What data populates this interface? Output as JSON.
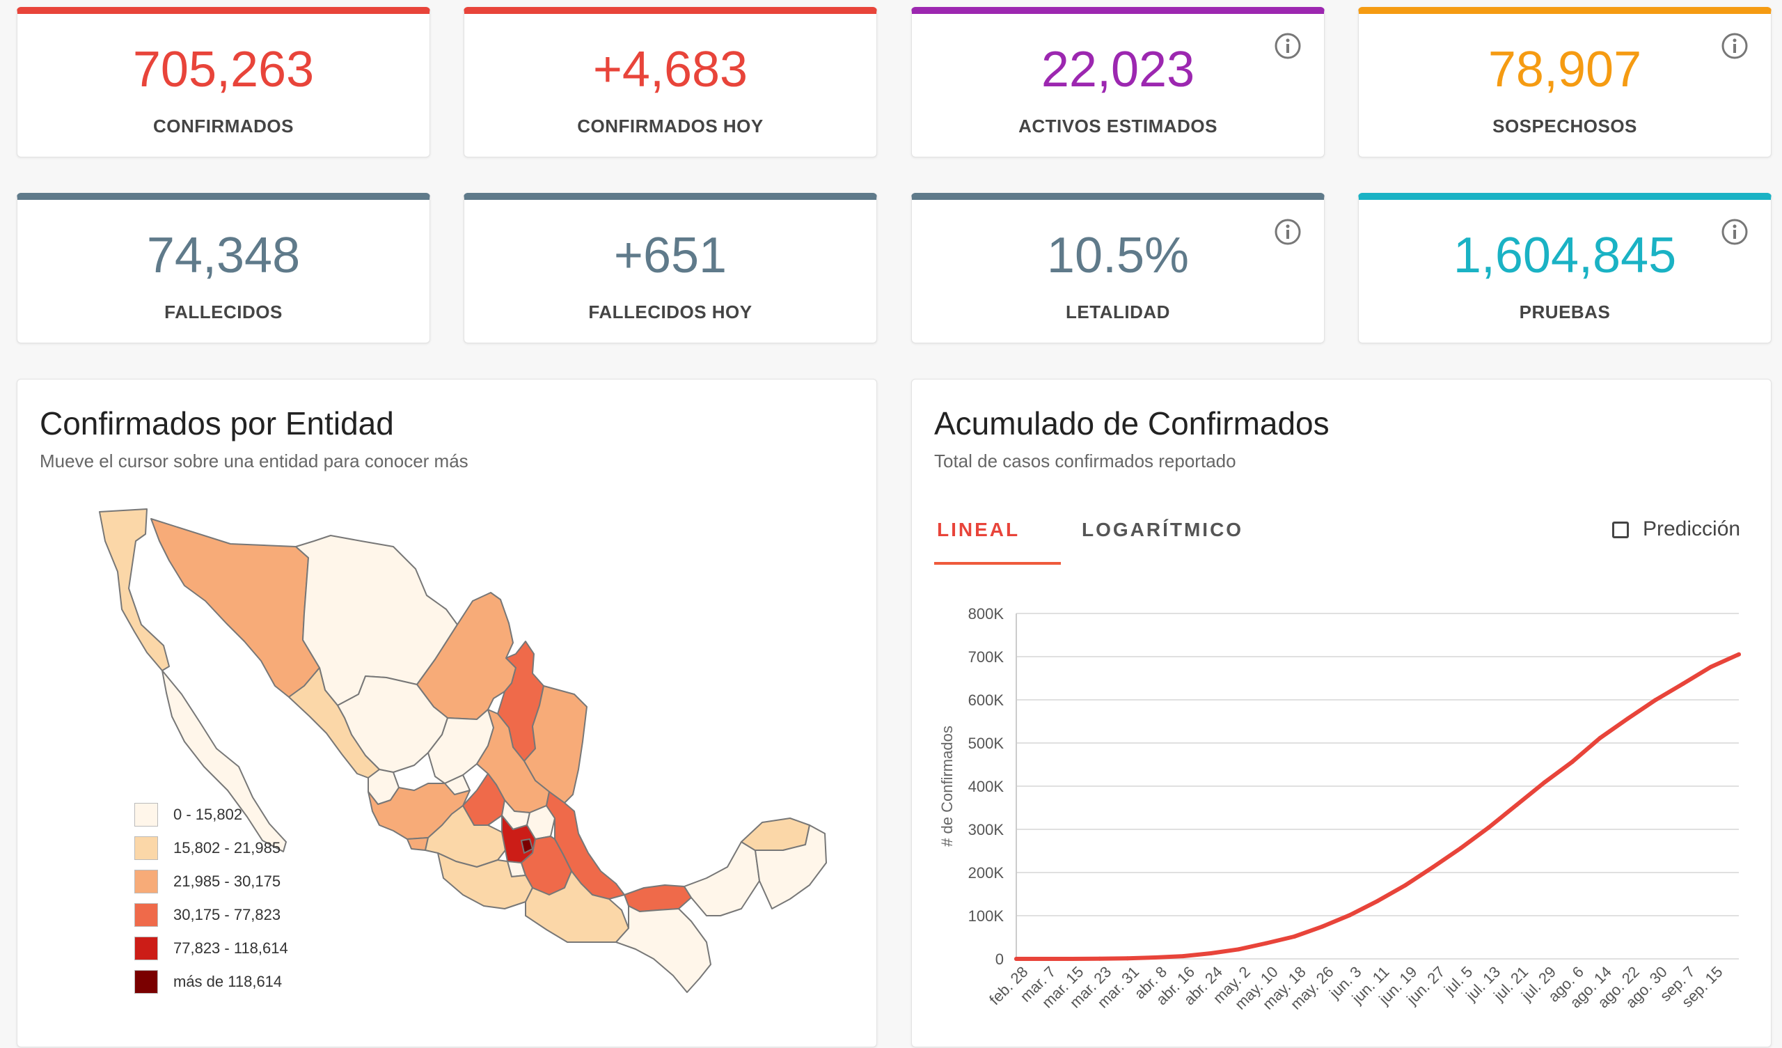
{
  "stats": [
    {
      "value": "705,263",
      "label": "CONFIRMADOS",
      "color": "#e8443a",
      "bar": "#e8443a",
      "info": false
    },
    {
      "value": "+4,683",
      "label": "CONFIRMADOS HOY",
      "color": "#e8443a",
      "bar": "#e8443a",
      "info": false
    },
    {
      "value": "22,023",
      "label": "ACTIVOS ESTIMADOS",
      "color": "#9c27b0",
      "bar": "#9c27b0",
      "info": true
    },
    {
      "value": "78,907",
      "label": "SOSPECHOSOS",
      "color": "#f59b12",
      "bar": "#f59b12",
      "info": true
    },
    {
      "value": "74,348",
      "label": "FALLECIDOS",
      "color": "#5f7a8a",
      "bar": "#5f7a8a",
      "info": false
    },
    {
      "value": "+651",
      "label": "FALLECIDOS HOY",
      "color": "#5f7a8a",
      "bar": "#5f7a8a",
      "info": false
    },
    {
      "value": "10.5%",
      "label": "LETALIDAD",
      "color": "#5f7a8a",
      "bar": "#5f7a8a",
      "info": true
    },
    {
      "value": "1,604,845",
      "label": "PRUEBAS",
      "color": "#1ab2c4",
      "bar": "#1ab2c4",
      "info": true
    }
  ],
  "map_panel": {
    "title": "Confirmados por Entidad",
    "subtitle": "Mueve el cursor sobre una entidad para conocer más",
    "legend": [
      {
        "label": "0 - 15,802",
        "color": "#fff6ea"
      },
      {
        "label": "15,802 - 21,985",
        "color": "#fbd7a8"
      },
      {
        "label": "21,985 - 30,175",
        "color": "#f7ab78"
      },
      {
        "label": "30,175 - 77,823",
        "color": "#ef6a4a"
      },
      {
        "label": "77,823 - 118,614",
        "color": "#cc1d17"
      },
      {
        "label": "más de 118,614",
        "color": "#7a0000"
      }
    ]
  },
  "chart_panel": {
    "title": "Acumulado de Confirmados",
    "subtitle": "Total de casos confirmados reportado",
    "tabs": [
      "LINEAL",
      "LOGARÍTMICO"
    ],
    "active_tab": "LINEAL",
    "checkbox_label": "Predicción"
  },
  "chart_data": {
    "type": "line",
    "ylabel": "# de Confirmados",
    "xlabel": "",
    "ylim": [
      0,
      800000
    ],
    "y_ticks": [
      "0",
      "100K",
      "200K",
      "300K",
      "400K",
      "500K",
      "600K",
      "700K",
      "800K"
    ],
    "x_ticks": [
      "feb. 28",
      "mar. 7",
      "mar. 15",
      "mar. 23",
      "mar. 31",
      "abr. 8",
      "abr. 16",
      "abr. 24",
      "may. 2",
      "may. 10",
      "may. 18",
      "may. 26",
      "jun. 3",
      "jun. 11",
      "jun. 19",
      "jun. 27",
      "jul. 5",
      "jul. 13",
      "jul. 21",
      "jul. 29",
      "ago. 6",
      "ago. 14",
      "ago. 22",
      "ago. 30",
      "sep. 7",
      "sep. 15"
    ],
    "grid": true,
    "series": [
      {
        "color": "#e8443a",
        "values": [
          0,
          7,
          41,
          316,
          1215,
          3181,
          6297,
          12872,
          22088,
          36327,
          51633,
          74560,
          101238,
          133974,
          170485,
          212802,
          256848,
          304435,
          356255,
          408449,
          456100,
          511369,
          556216,
          599560,
          637509,
          676487,
          705263
        ]
      }
    ]
  }
}
